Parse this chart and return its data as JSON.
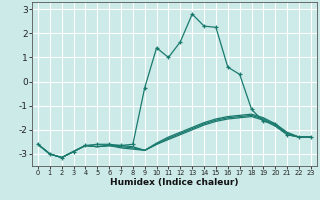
{
  "title": "",
  "xlabel": "Humidex (Indice chaleur)",
  "bg_color": "#cceae8",
  "grid_color": "#ffffff",
  "line_color": "#1a7a6e",
  "xlim": [
    -0.5,
    23.5
  ],
  "ylim": [
    -3.5,
    3.3
  ],
  "xticks": [
    0,
    1,
    2,
    3,
    4,
    5,
    6,
    7,
    8,
    9,
    10,
    11,
    12,
    13,
    14,
    15,
    16,
    17,
    18,
    19,
    20,
    21,
    22,
    23
  ],
  "yticks": [
    -3,
    -2,
    -1,
    0,
    1,
    2,
    3
  ],
  "series": [
    {
      "x": [
        0,
        1,
        2,
        3,
        4,
        5,
        6,
        7,
        8,
        9,
        10,
        11,
        12,
        13,
        14,
        15,
        16,
        17,
        18,
        19,
        20,
        21,
        22,
        23
      ],
      "y": [
        -2.6,
        -3.0,
        -3.15,
        -2.9,
        -2.65,
        -2.6,
        -2.6,
        -2.65,
        -2.6,
        -0.25,
        1.4,
        1.0,
        1.65,
        2.8,
        2.3,
        2.25,
        0.6,
        0.3,
        -1.15,
        -1.65,
        -1.75,
        -2.2,
        -2.3,
        -2.3
      ],
      "marker": true
    },
    {
      "x": [
        0,
        1,
        2,
        3,
        4,
        5,
        6,
        7,
        8,
        9,
        10,
        11,
        12,
        13,
        14,
        15,
        16,
        17,
        18,
        19,
        20,
        21,
        22,
        23
      ],
      "y": [
        -2.6,
        -3.0,
        -3.15,
        -2.9,
        -2.65,
        -2.7,
        -2.65,
        -2.75,
        -2.8,
        -2.85,
        -2.55,
        -2.3,
        -2.1,
        -1.9,
        -1.7,
        -1.55,
        -1.45,
        -1.4,
        -1.35,
        -1.5,
        -1.75,
        -2.1,
        -2.3,
        -2.3
      ],
      "marker": false
    },
    {
      "x": [
        0,
        1,
        2,
        3,
        4,
        5,
        6,
        7,
        8,
        9,
        10,
        11,
        12,
        13,
        14,
        15,
        16,
        17,
        18,
        19,
        20,
        21,
        22,
        23
      ],
      "y": [
        -2.6,
        -3.0,
        -3.15,
        -2.9,
        -2.65,
        -2.7,
        -2.65,
        -2.7,
        -2.75,
        -2.85,
        -2.6,
        -2.35,
        -2.15,
        -1.95,
        -1.75,
        -1.6,
        -1.5,
        -1.45,
        -1.4,
        -1.55,
        -1.8,
        -2.15,
        -2.3,
        -2.3
      ],
      "marker": false
    },
    {
      "x": [
        0,
        1,
        2,
        3,
        4,
        5,
        6,
        7,
        8,
        9,
        10,
        11,
        12,
        13,
        14,
        15,
        16,
        17,
        18,
        19,
        20,
        21,
        22,
        23
      ],
      "y": [
        -2.6,
        -3.0,
        -3.15,
        -2.9,
        -2.65,
        -2.7,
        -2.65,
        -2.65,
        -2.7,
        -2.85,
        -2.6,
        -2.4,
        -2.2,
        -2.0,
        -1.8,
        -1.65,
        -1.55,
        -1.5,
        -1.45,
        -1.6,
        -1.85,
        -2.2,
        -2.3,
        -2.3
      ],
      "marker": false
    }
  ]
}
